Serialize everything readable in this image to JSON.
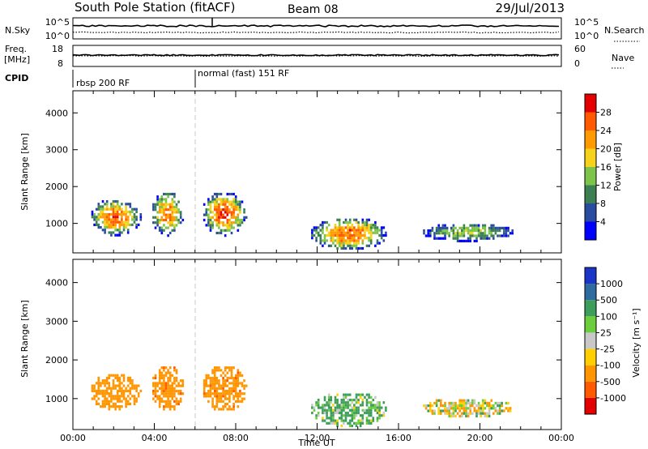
{
  "header": {
    "station": "South Pole Station (fitACF)",
    "beam": "Beam 08",
    "date": "29/Jul/2013"
  },
  "top_panels": {
    "nsky": {
      "label": "N.Sky",
      "tick_top": "10^5",
      "tick_bottom": "10^0"
    },
    "nsearch": {
      "label": "N.Search",
      "tick_top": "10^5",
      "tick_bottom": "10^0"
    },
    "freq": {
      "label_line1": "Freq.",
      "label_line2": "[MHz]",
      "tick_top": "18",
      "tick_bottom": "8"
    },
    "nave": {
      "label": "Nave",
      "tick_top": "60",
      "tick_bottom": "0"
    },
    "cpid": {
      "label": "CPID",
      "mode1": "rbsp 200 RF",
      "mode2": "normal (fast) 151 RF"
    }
  },
  "colors": {
    "power": [
      "#0000ff",
      "#2a4ca0",
      "#3c7f53",
      "#7dc44b",
      "#f6d21a",
      "#ff9b00",
      "#ff5a00",
      "#e40000"
    ],
    "velocity": [
      "#e40000",
      "#ff5a00",
      "#ff9500",
      "#ffcf00",
      "#c8c8c8",
      "#6ccd3d",
      "#3c9e5a",
      "#2f6aa0",
      "#1a35c8"
    ],
    "line": "#000000"
  },
  "chart_data": [
    {
      "type": "heatmap",
      "name": "power-panel",
      "ylabel": "Slant Range [km]",
      "yticks": [
        "1000",
        "2000",
        "3000",
        "4000"
      ],
      "ylim": [
        200,
        4600
      ],
      "xlim": [
        0,
        24
      ],
      "colorbar": {
        "label": "Power [dB]",
        "ticks": [
          "4",
          "8",
          "12",
          "16",
          "20",
          "24",
          "28"
        ],
        "range": [
          0,
          32
        ]
      },
      "echo_regions": [
        {
          "t0": 0.8,
          "t1": 3.3,
          "r0": 700,
          "r1": 1700,
          "peak_r": 1100,
          "intensity": 0.85
        },
        {
          "t0": 3.8,
          "t1": 5.4,
          "r0": 700,
          "r1": 1900,
          "peak_r": 1150,
          "intensity": 0.8
        },
        {
          "t0": 6.3,
          "t1": 8.5,
          "r0": 700,
          "r1": 1900,
          "peak_r": 1200,
          "intensity": 0.9
        },
        {
          "t0": 11.6,
          "t1": 15.4,
          "r0": 300,
          "r1": 1200,
          "peak_r": 550,
          "intensity": 0.85
        },
        {
          "t0": 17.1,
          "t1": 21.6,
          "r0": 550,
          "r1": 1050,
          "peak_r": 800,
          "intensity": 0.45
        }
      ]
    },
    {
      "type": "heatmap",
      "name": "velocity-panel",
      "ylabel": "Slant Range [km]",
      "yticks": [
        "1000",
        "2000",
        "3000",
        "4000"
      ],
      "ylim": [
        200,
        4600
      ],
      "xlim": [
        0,
        24
      ],
      "xticks": [
        "00:00",
        "04:00",
        "08:00",
        "12:00",
        "16:00",
        "20:00",
        "00:00"
      ],
      "xlabel": "Time UT",
      "colorbar": {
        "label": "Velocity [m s⁻¹]",
        "ticks": [
          "-1000",
          "-500",
          "-100",
          "-25",
          "25",
          "100",
          "500",
          "1000"
        ],
        "range": [
          -1500,
          1500
        ]
      },
      "echo_regions": [
        {
          "t0": 0.8,
          "t1": 3.3,
          "r0": 700,
          "r1": 1700,
          "velocity": -300
        },
        {
          "t0": 3.8,
          "t1": 5.4,
          "r0": 700,
          "r1": 1900,
          "velocity": -350
        },
        {
          "t0": 6.3,
          "t1": 8.5,
          "r0": 700,
          "r1": 1900,
          "velocity": -320
        },
        {
          "t0": 11.6,
          "t1": 15.4,
          "r0": 300,
          "r1": 1200,
          "velocity": 150
        },
        {
          "t0": 17.1,
          "t1": 21.6,
          "r0": 550,
          "r1": 1050,
          "velocity": -60
        }
      ]
    }
  ]
}
